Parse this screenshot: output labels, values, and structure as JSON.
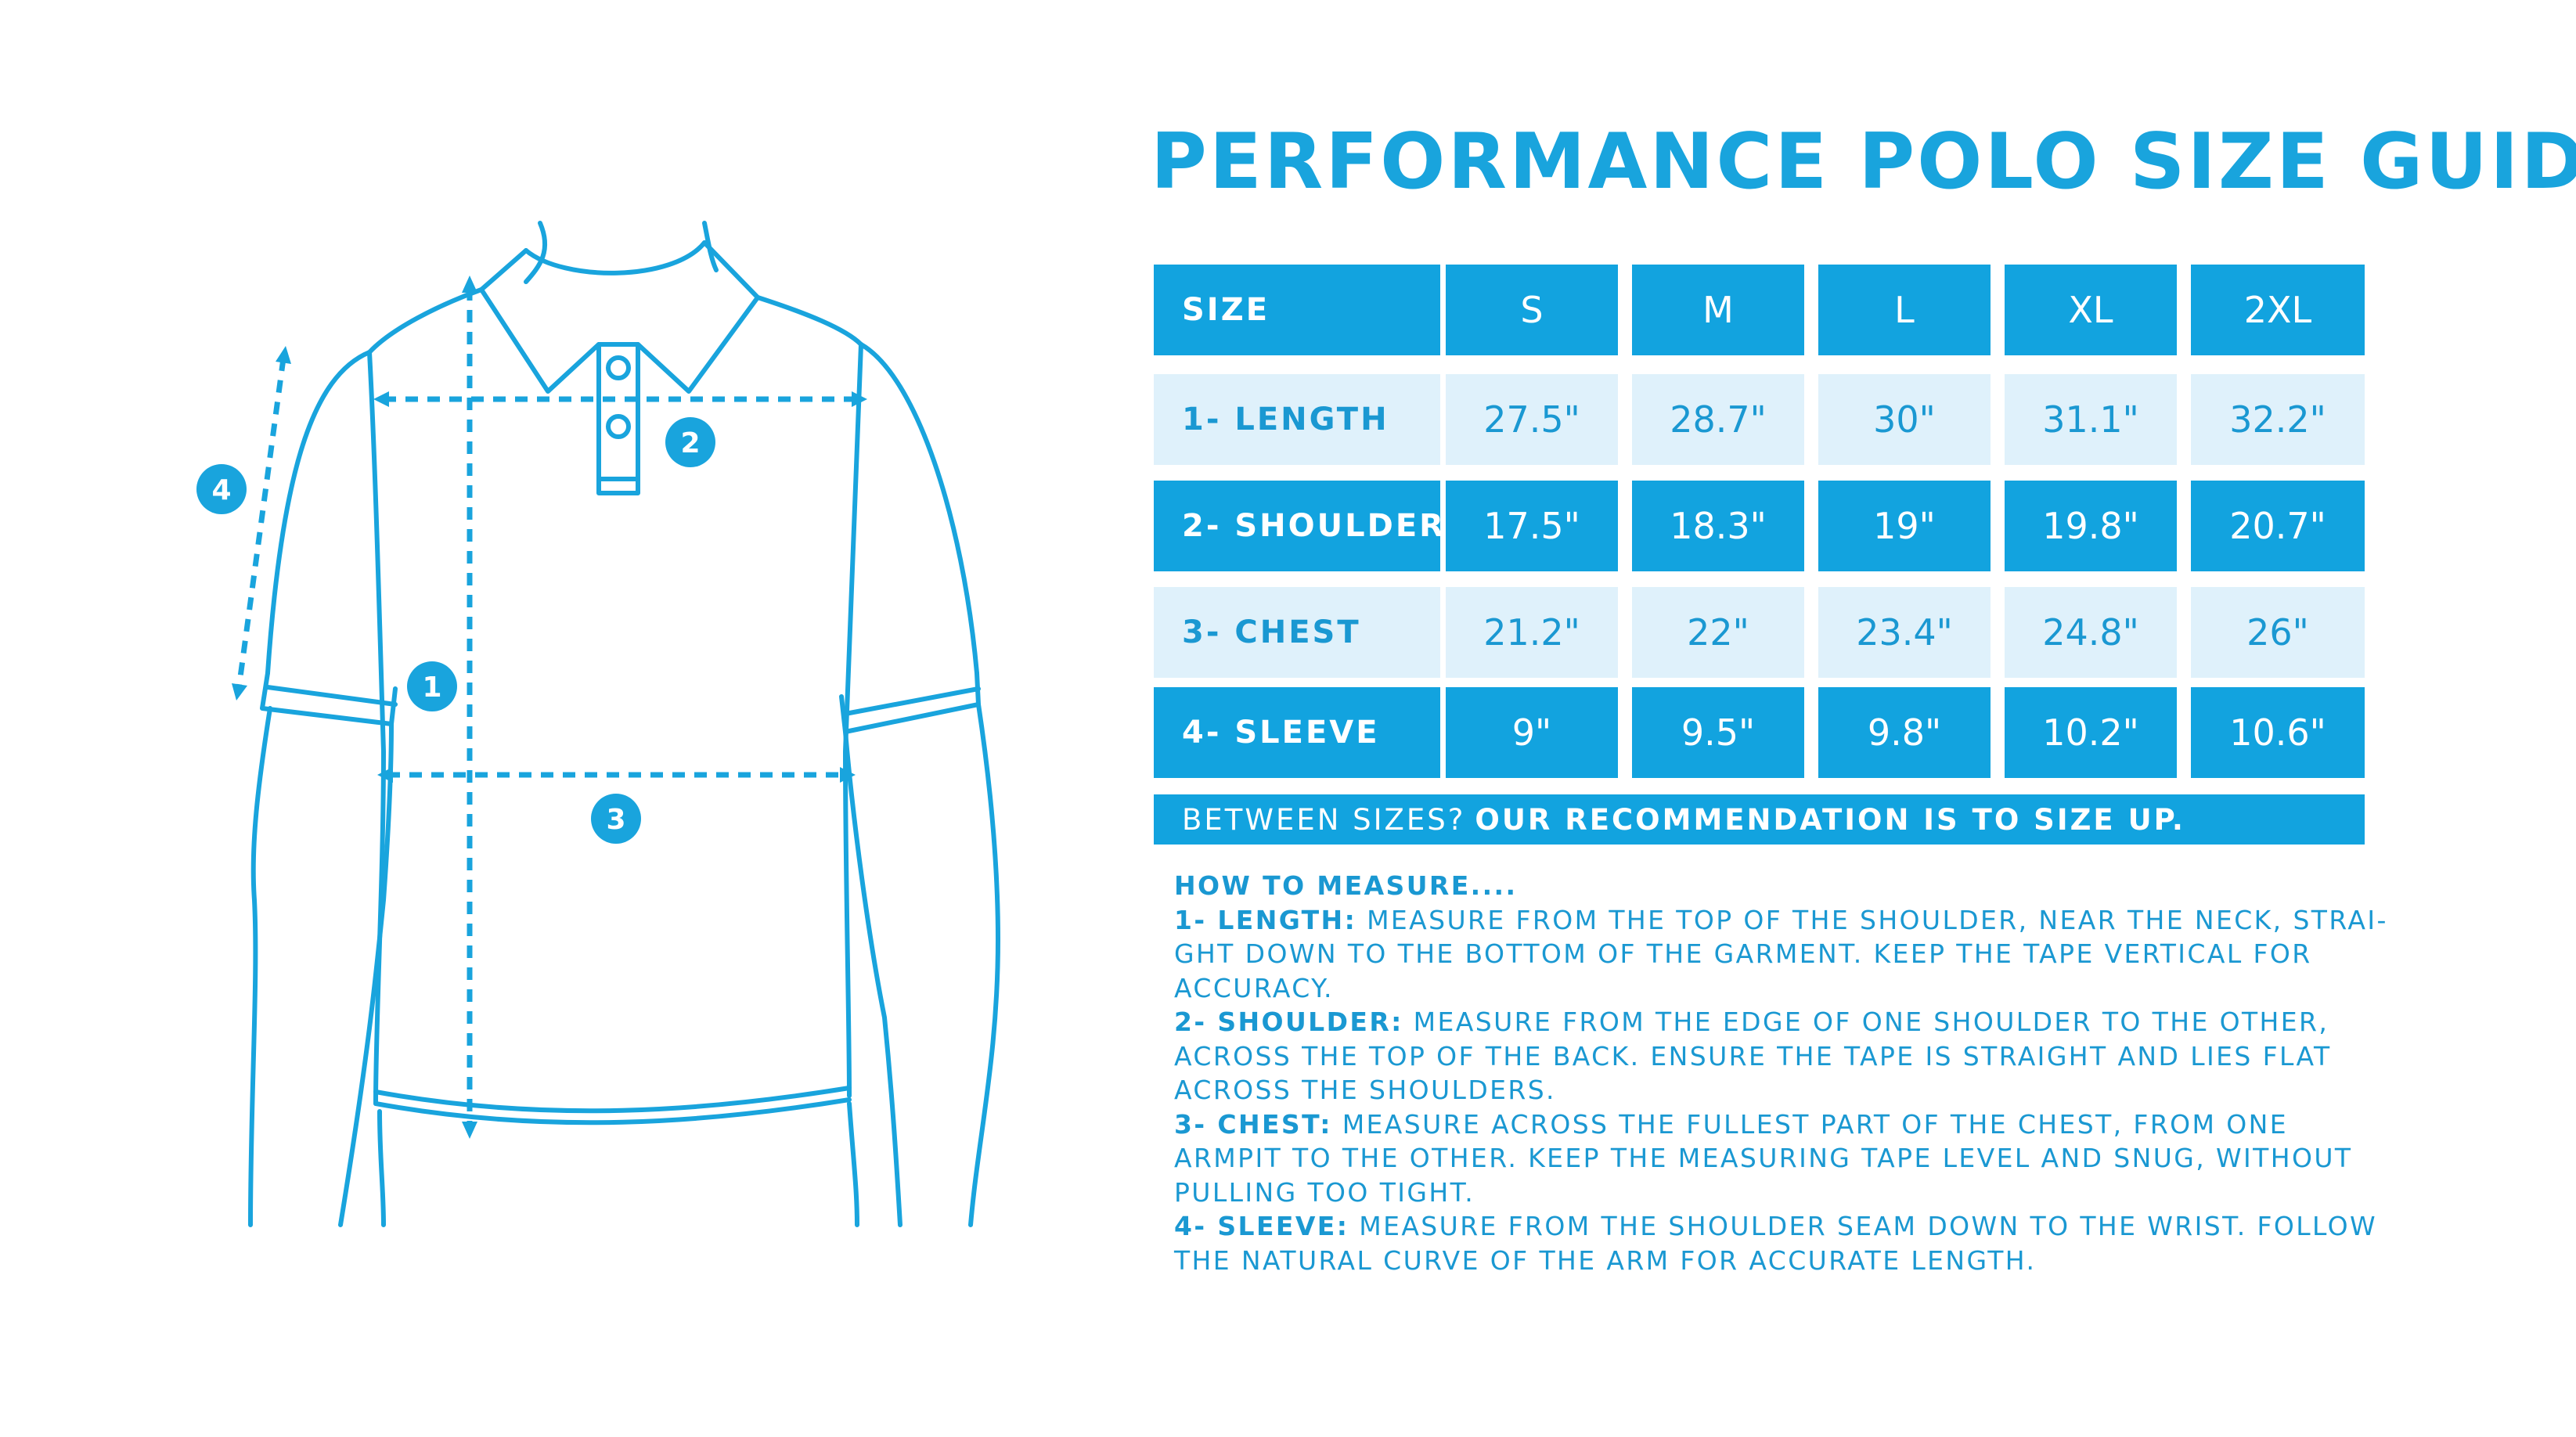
{
  "title": "PERFORMANCE POLO SIZE GUIDE",
  "colors": {
    "accent": "#12a3df",
    "light_row": "#dff1fb",
    "text_blue": "#1a98d2"
  },
  "diagram": {
    "markers": [
      "1",
      "2",
      "3",
      "4"
    ]
  },
  "table": {
    "header": {
      "label": "SIZE",
      "sizes": [
        "S",
        "M",
        "L",
        "XL",
        "2XL"
      ]
    },
    "rows": [
      {
        "label": "1- LENGTH",
        "values": [
          "27.5\"",
          "28.7\"",
          "30\"",
          "31.1\"",
          "32.2\""
        ],
        "style": "light"
      },
      {
        "label": "2- SHOULDER",
        "values": [
          "17.5\"",
          "18.3\"",
          "19\"",
          "19.8\"",
          "20.7\""
        ],
        "style": "dark"
      },
      {
        "label": "3- CHEST",
        "values": [
          "21.2\"",
          "22\"",
          "23.4\"",
          "24.8\"",
          "26\""
        ],
        "style": "light"
      },
      {
        "label": "4- SLEEVE",
        "values": [
          "9\"",
          "9.5\"",
          "9.8\"",
          "10.2\"",
          "10.6\""
        ],
        "style": "dark"
      }
    ]
  },
  "banner": {
    "prefix": "BETWEEN SIZES?",
    "emphasis": "OUR RECOMMENDATION IS TO SIZE UP."
  },
  "how_to": {
    "heading": "HOW TO MEASURE....",
    "lines": [
      {
        "key": "1- LENGTH:",
        "text": "MEASURE FROM THE TOP OF THE SHOULDER, NEAR THE NECK, STRAI-"
      },
      {
        "key": "",
        "text": "GHT DOWN TO THE BOTTOM OF THE GARMENT. KEEP THE TAPE VERTICAL FOR"
      },
      {
        "key": "",
        "text": "ACCURACY."
      },
      {
        "key": "2- SHOULDER:",
        "text": "MEASURE FROM THE EDGE OF ONE SHOULDER TO THE OTHER,"
      },
      {
        "key": "",
        "text": "ACROSS THE TOP OF THE BACK. ENSURE THE TAPE IS STRAIGHT AND LIES FLAT"
      },
      {
        "key": "",
        "text": "ACROSS THE SHOULDERS."
      },
      {
        "key": "3- CHEST:",
        "text": "MEASURE ACROSS THE FULLEST PART OF THE CHEST, FROM ONE"
      },
      {
        "key": "",
        "text": "ARMPIT TO THE OTHER. KEEP THE MEASURING TAPE LEVEL AND SNUG, WITHOUT"
      },
      {
        "key": "",
        "text": "PULLING TOO TIGHT."
      },
      {
        "key": "4- SLEEVE:",
        "text": "MEASURE FROM THE SHOULDER SEAM DOWN TO THE WRIST. FOLLOW"
      },
      {
        "key": "",
        "text": "THE NATURAL CURVE OF THE ARM FOR ACCURATE LENGTH."
      }
    ]
  }
}
